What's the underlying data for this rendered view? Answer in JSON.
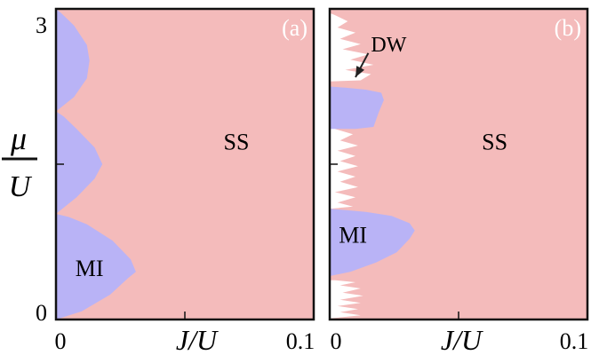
{
  "figure": {
    "colors": {
      "superSolid": "#f4bbbb",
      "mottInsulator": "#b9b3f6",
      "densityWave": "#ffffff",
      "frame": "#111111"
    },
    "yAxisLabel": {
      "numerator": "μ",
      "denominator": "U"
    }
  },
  "chart_data": [
    {
      "type": "area",
      "panel_label": "(a)",
      "xlabel": "J/U",
      "ylabel": "μ/U",
      "xlim": [
        0,
        0.1
      ],
      "ylim": [
        0,
        3
      ],
      "x_ticks": [
        "0",
        "0.1"
      ],
      "y_ticks": [
        "0",
        "3"
      ],
      "region_labels": [
        {
          "text": "MI",
          "x": 0.013,
          "y": 0.42
        },
        {
          "text": "SS",
          "x": 0.07,
          "y": 1.64
        }
      ],
      "regions": [
        {
          "name": "SS",
          "fill": "superSolid",
          "boundary": [
            [
              0,
              0
            ],
            [
              0.1,
              0
            ],
            [
              0.1,
              3
            ],
            [
              0,
              3
            ]
          ]
        },
        {
          "name": "MI",
          "fill": "mottInsulator",
          "boundary": [
            [
              0,
              0
            ],
            [
              0.01,
              0.08
            ],
            [
              0.021,
              0.24
            ],
            [
              0.028,
              0.4
            ],
            [
              0.031,
              0.46
            ],
            [
              0.029,
              0.58
            ],
            [
              0.022,
              0.76
            ],
            [
              0.012,
              0.92
            ],
            [
              0.005,
              0.99
            ],
            [
              0,
              1.02
            ]
          ]
        },
        {
          "name": "MI",
          "fill": "mottInsulator",
          "boundary": [
            [
              0,
              1.02
            ],
            [
              0.008,
              1.18
            ],
            [
              0.015,
              1.36
            ],
            [
              0.018,
              1.5
            ],
            [
              0.015,
              1.66
            ],
            [
              0.008,
              1.84
            ],
            [
              0.003,
              1.96
            ],
            [
              0,
              2.01
            ]
          ]
        },
        {
          "name": "MI",
          "fill": "mottInsulator",
          "boundary": [
            [
              0,
              2.01
            ],
            [
              0.007,
              2.15
            ],
            [
              0.012,
              2.33
            ],
            [
              0.013,
              2.5
            ],
            [
              0.012,
              2.65
            ],
            [
              0.007,
              2.84
            ],
            [
              0.002,
              2.96
            ],
            [
              0,
              3
            ]
          ]
        }
      ]
    },
    {
      "type": "area",
      "panel_label": "(b)",
      "xlabel": "J/U",
      "ylabel": "μ/U",
      "xlim": [
        0,
        0.1
      ],
      "ylim": [
        0,
        3
      ],
      "x_ticks": [
        "0",
        "0.1"
      ],
      "y_ticks": [],
      "region_labels": [
        {
          "text": "MI",
          "x": 0.009,
          "y": 0.74
        },
        {
          "text": "SS",
          "x": 0.064,
          "y": 1.64
        }
      ],
      "annotations": [
        {
          "text": "DW",
          "x": 0.016,
          "y": 2.59,
          "arrow_to": [
            0.01,
            2.34
          ]
        }
      ],
      "regions": [
        {
          "name": "SS",
          "fill": "superSolid",
          "boundary": [
            [
              0,
              0
            ],
            [
              0.1,
              0
            ],
            [
              0.1,
              3
            ],
            [
              0,
              3
            ]
          ]
        },
        {
          "name": "DW",
          "fill": "densityWave",
          "boundary": [
            [
              0,
              0.01
            ],
            [
              0.012,
              0.04
            ],
            [
              0.004,
              0.07
            ],
            [
              0.011,
              0.1
            ],
            [
              0.003,
              0.13
            ],
            [
              0.012,
              0.16
            ],
            [
              0.004,
              0.19
            ],
            [
              0.013,
              0.23
            ],
            [
              0.005,
              0.26
            ],
            [
              0.012,
              0.3
            ],
            [
              0.004,
              0.33
            ],
            [
              0.01,
              0.36
            ],
            [
              0.002,
              0.38
            ],
            [
              0,
              0.38
            ]
          ]
        },
        {
          "name": "DW",
          "fill": "densityWave",
          "boundary": [
            [
              0,
              1.07
            ],
            [
              0.009,
              1.09
            ],
            [
              0.003,
              1.13
            ],
            [
              0.01,
              1.18
            ],
            [
              0.002,
              1.23
            ],
            [
              0.011,
              1.28
            ],
            [
              0.004,
              1.33
            ],
            [
              0.01,
              1.38
            ],
            [
              0.003,
              1.43
            ],
            [
              0.011,
              1.48
            ],
            [
              0.004,
              1.53
            ],
            [
              0.01,
              1.58
            ],
            [
              0.003,
              1.63
            ],
            [
              0.011,
              1.68
            ],
            [
              0.004,
              1.73
            ],
            [
              0.009,
              1.79
            ],
            [
              0.002,
              1.84
            ],
            [
              0.008,
              1.89
            ],
            [
              0.003,
              1.95
            ],
            [
              0.006,
              2.01
            ],
            [
              0,
              2.03
            ]
          ]
        },
        {
          "name": "DW",
          "fill": "densityWave",
          "boundary": [
            [
              0,
              2.3
            ],
            [
              0.012,
              2.31
            ],
            [
              0.016,
              2.37
            ],
            [
              0.006,
              2.41
            ],
            [
              0.017,
              2.46
            ],
            [
              0.008,
              2.51
            ],
            [
              0.015,
              2.56
            ],
            [
              0.005,
              2.61
            ],
            [
              0.012,
              2.66
            ],
            [
              0.004,
              2.71
            ],
            [
              0.01,
              2.77
            ],
            [
              0.003,
              2.82
            ],
            [
              0.007,
              2.88
            ],
            [
              0.002,
              2.94
            ],
            [
              0,
              2.96
            ]
          ]
        },
        {
          "name": "MI",
          "fill": "mottInsulator",
          "boundary": [
            [
              0,
              0.42
            ],
            [
              0.008,
              0.46
            ],
            [
              0.018,
              0.55
            ],
            [
              0.026,
              0.65
            ],
            [
              0.031,
              0.78
            ],
            [
              0.033,
              0.86
            ],
            [
              0.031,
              0.93
            ],
            [
              0.024,
              1.0
            ],
            [
              0.014,
              1.04
            ],
            [
              0,
              1.07
            ]
          ]
        },
        {
          "name": "MI",
          "fill": "mottInsulator",
          "boundary": [
            [
              0,
              1.84
            ],
            [
              0.01,
              1.84
            ],
            [
              0.017,
              1.86
            ],
            [
              0.019,
              2.0
            ],
            [
              0.021,
              2.12
            ],
            [
              0.02,
              2.19
            ],
            [
              0.014,
              2.22
            ],
            [
              0.006,
              2.24
            ],
            [
              0,
              2.25
            ]
          ]
        }
      ]
    }
  ]
}
